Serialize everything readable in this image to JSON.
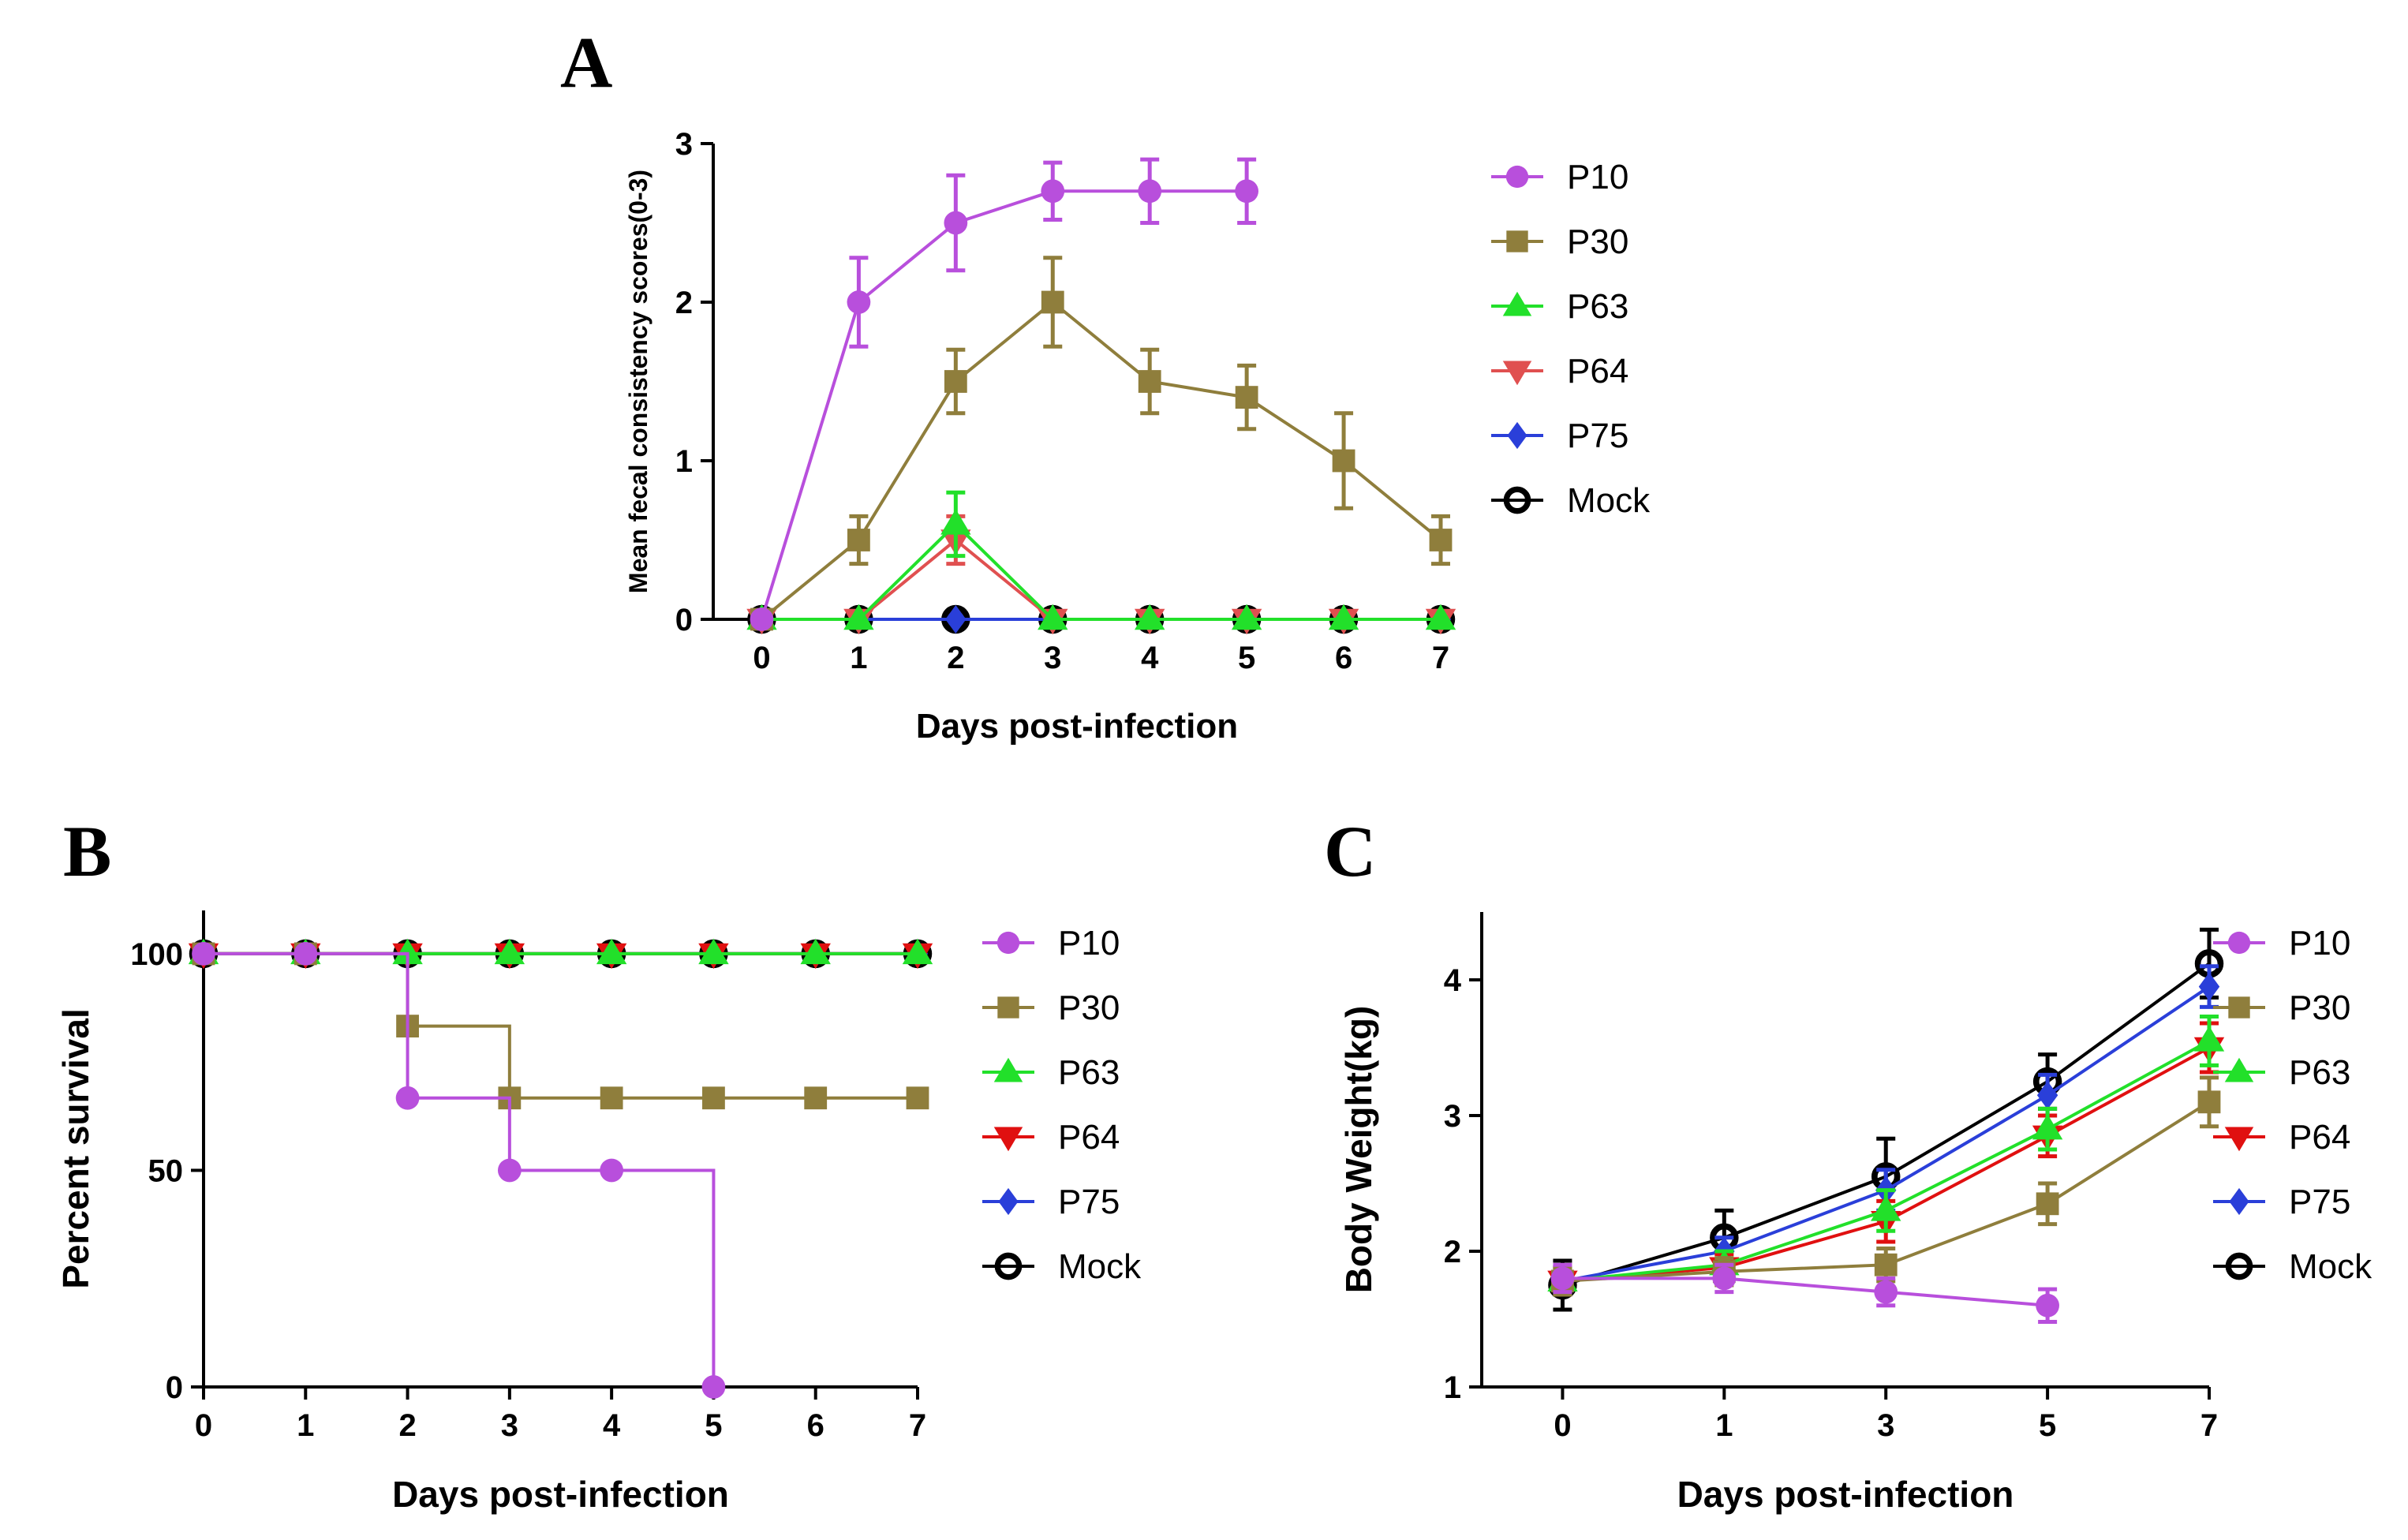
{
  "chart_data": [
    {
      "panel": "A",
      "type": "line",
      "xlabel": "Days post-infection",
      "ylabel": "Mean fecal consistency scores(0-3)",
      "xlim": [
        -0.5,
        7
      ],
      "ylim": [
        0,
        3
      ],
      "xticks": [
        "0",
        "1",
        "2",
        "3",
        "4",
        "5",
        "6",
        "7"
      ],
      "yticks": [
        "0",
        "1",
        "2",
        "3"
      ],
      "series": [
        {
          "name": "P10",
          "color": "#b84fdc",
          "marker": "circle",
          "x": [
            0,
            1,
            2,
            3,
            4,
            5
          ],
          "values": [
            0,
            2.0,
            2.5,
            2.7,
            2.7,
            2.7
          ],
          "errors": [
            0,
            0.28,
            0.3,
            0.18,
            0.2,
            0.2
          ]
        },
        {
          "name": "P30",
          "color": "#8f7e3c",
          "marker": "square",
          "x": [
            0,
            1,
            2,
            3,
            4,
            5,
            6,
            7
          ],
          "values": [
            0,
            0.5,
            1.5,
            2.0,
            1.5,
            1.4,
            1.0,
            0.5
          ],
          "errors": [
            0,
            0.15,
            0.2,
            0.28,
            0.2,
            0.2,
            0.3,
            0.15
          ]
        },
        {
          "name": "P63",
          "color": "#22e02a",
          "marker": "triangle-up",
          "x": [
            0,
            1,
            2,
            3,
            4,
            5,
            6,
            7
          ],
          "values": [
            0,
            0,
            0.6,
            0,
            0,
            0,
            0,
            0
          ],
          "errors": [
            0,
            0,
            0.2,
            0,
            0,
            0,
            0,
            0
          ]
        },
        {
          "name": "P64",
          "color": "#e05050",
          "marker": "triangle-down",
          "x": [
            0,
            1,
            2,
            3,
            4,
            5,
            6,
            7
          ],
          "values": [
            0,
            0,
            0.5,
            0,
            0,
            0,
            0,
            0
          ],
          "errors": [
            0,
            0,
            0.15,
            0,
            0,
            0,
            0,
            0
          ]
        },
        {
          "name": "P75",
          "color": "#2a3fd9",
          "marker": "diamond",
          "x": [
            0,
            1,
            2,
            3,
            4,
            5,
            6,
            7
          ],
          "values": [
            0,
            0,
            0,
            0,
            0,
            0,
            0,
            0
          ],
          "errors": [
            0,
            0,
            0,
            0,
            0,
            0,
            0,
            0
          ]
        },
        {
          "name": "Mock",
          "color": "#000000",
          "marker": "open-circle",
          "x": [
            0,
            1,
            2,
            3,
            4,
            5,
            6,
            7
          ],
          "values": [
            0,
            0,
            0,
            0,
            0,
            0,
            0,
            0
          ],
          "errors": [
            0,
            0,
            0,
            0,
            0,
            0,
            0,
            0
          ]
        }
      ]
    },
    {
      "panel": "B",
      "type": "line",
      "step": true,
      "xlabel": "Days post-infection",
      "ylabel": "Percent survival",
      "xlim": [
        0,
        7
      ],
      "ylim": [
        0,
        110
      ],
      "xticks": [
        "0",
        "1",
        "2",
        "3",
        "4",
        "5",
        "6",
        "7"
      ],
      "yticks": [
        "0",
        "50",
        "100"
      ],
      "ytick_values": [
        0,
        50,
        100
      ],
      "series": [
        {
          "name": "P10",
          "color": "#b84fdc",
          "marker": "circle",
          "x": [
            0,
            1,
            2,
            3,
            4,
            5
          ],
          "values": [
            100,
            100,
            66.7,
            50,
            50,
            0
          ]
        },
        {
          "name": "P30",
          "color": "#8f7e3c",
          "marker": "square",
          "x": [
            0,
            1,
            2,
            3,
            4,
            5,
            6,
            7
          ],
          "values": [
            100,
            100,
            83.3,
            66.7,
            66.7,
            66.7,
            66.7,
            66.7
          ]
        },
        {
          "name": "P63",
          "color": "#22e02a",
          "marker": "triangle-up",
          "x": [
            0,
            1,
            2,
            3,
            4,
            5,
            6,
            7
          ],
          "values": [
            100,
            100,
            100,
            100,
            100,
            100,
            100,
            100
          ]
        },
        {
          "name": "P64",
          "color": "#e01010",
          "marker": "triangle-down",
          "x": [
            0,
            1,
            2,
            3,
            4,
            5,
            6,
            7
          ],
          "values": [
            100,
            100,
            100,
            100,
            100,
            100,
            100,
            100
          ]
        },
        {
          "name": "P75",
          "color": "#2a3fd9",
          "marker": "diamond",
          "x": [
            0,
            1,
            2,
            3,
            4,
            5,
            6,
            7
          ],
          "values": [
            100,
            100,
            100,
            100,
            100,
            100,
            100,
            100
          ]
        },
        {
          "name": "Mock",
          "color": "#000000",
          "marker": "open-circle",
          "x": [
            0,
            1,
            2,
            3,
            4,
            5,
            6,
            7
          ],
          "values": [
            100,
            100,
            100,
            100,
            100,
            100,
            100,
            100
          ]
        }
      ]
    },
    {
      "panel": "C",
      "type": "line",
      "xlabel": "Days post-infection",
      "ylabel": "Body Weight(kg)",
      "xlim": [
        -1,
        8
      ],
      "ylim": [
        1,
        4.5
      ],
      "xticks": [
        "0",
        "1",
        "3",
        "5",
        "7"
      ],
      "xtick_values": [
        0,
        2,
        4,
        6,
        8
      ],
      "yticks": [
        "1",
        "2",
        "3",
        "4"
      ],
      "series": [
        {
          "name": "P10",
          "color": "#b84fdc",
          "marker": "circle",
          "x": [
            0,
            2,
            4,
            6
          ],
          "values": [
            1.8,
            1.8,
            1.7,
            1.6
          ],
          "errors": [
            0.1,
            0.1,
            0.1,
            0.12
          ]
        },
        {
          "name": "P30",
          "color": "#8f7e3c",
          "marker": "square",
          "x": [
            0,
            2,
            4,
            6,
            8
          ],
          "values": [
            1.78,
            1.85,
            1.9,
            2.35,
            3.1
          ],
          "errors": [
            0.1,
            0.1,
            0.12,
            0.15,
            0.18
          ]
        },
        {
          "name": "P63",
          "color": "#22e02a",
          "marker": "triangle-up",
          "x": [
            0,
            2,
            4,
            6,
            8
          ],
          "values": [
            1.78,
            1.9,
            2.3,
            2.9,
            3.55
          ],
          "errors": [
            0.1,
            0.1,
            0.15,
            0.15,
            0.18
          ]
        },
        {
          "name": "P64",
          "color": "#e01010",
          "marker": "triangle-down",
          "x": [
            0,
            2,
            4,
            6,
            8
          ],
          "values": [
            1.78,
            1.88,
            2.22,
            2.85,
            3.5
          ],
          "errors": [
            0.1,
            0.1,
            0.15,
            0.15,
            0.18
          ]
        },
        {
          "name": "P75",
          "color": "#2a3fd9",
          "marker": "diamond",
          "x": [
            0,
            2,
            4,
            6,
            8
          ],
          "values": [
            1.78,
            2.0,
            2.45,
            3.15,
            3.95
          ],
          "errors": [
            0.1,
            0.1,
            0.15,
            0.15,
            0.15
          ]
        },
        {
          "name": "Mock",
          "color": "#000000",
          "marker": "open-circle",
          "x": [
            0,
            2,
            4,
            6,
            8
          ],
          "values": [
            1.75,
            2.1,
            2.55,
            3.25,
            4.12
          ],
          "errors": [
            0.18,
            0.2,
            0.28,
            0.2,
            0.25
          ]
        }
      ]
    }
  ]
}
